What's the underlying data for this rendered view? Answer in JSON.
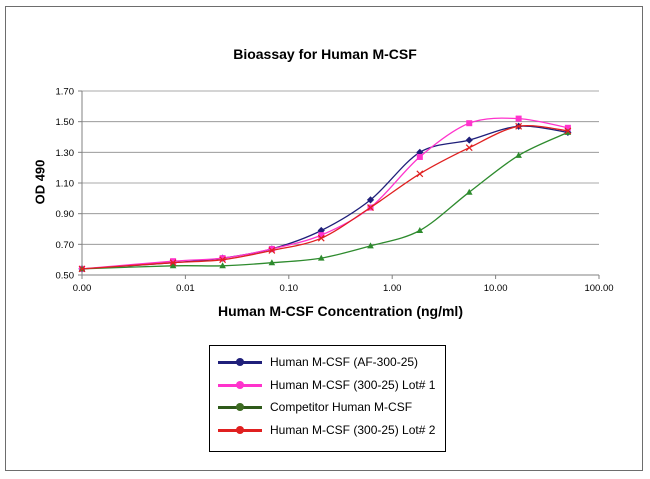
{
  "chart_data": {
    "type": "line",
    "title": "Bioassay for Human M-CSF",
    "xlabel": "Human M-CSF Concentration (ng/ml)",
    "ylabel": "OD 490",
    "x_scale": "log",
    "xlim": [
      0.001,
      100
    ],
    "ylim": [
      0.5,
      1.7
    ],
    "x_tick_labels": [
      "0.00",
      "0.01",
      "0.10",
      "1.00",
      "10.00",
      "100.00"
    ],
    "y_tick_labels": [
      "0.50",
      "0.70",
      "0.90",
      "1.10",
      "1.30",
      "1.50",
      "1.70"
    ],
    "grid": "horizontal",
    "legend_position": "bottom",
    "series": [
      {
        "name": "Human M-CSF (AF-300-25)",
        "color": "#1f1f7a",
        "marker": "diamond",
        "points": [
          [
            0.001,
            0.54
          ],
          [
            0.0076,
            0.58
          ],
          [
            0.0229,
            0.61
          ],
          [
            0.0686,
            0.67
          ],
          [
            0.206,
            0.79
          ],
          [
            0.617,
            0.99
          ],
          [
            1.85,
            1.3
          ],
          [
            5.56,
            1.38
          ],
          [
            16.7,
            1.47
          ],
          [
            50,
            1.43
          ]
        ]
      },
      {
        "name": "Human M-CSF (300-25) Lot# 1",
        "color": "#ff33cc",
        "marker": "square",
        "points": [
          [
            0.001,
            0.54
          ],
          [
            0.0076,
            0.59
          ],
          [
            0.0229,
            0.61
          ],
          [
            0.0686,
            0.67
          ],
          [
            0.206,
            0.76
          ],
          [
            0.617,
            0.94
          ],
          [
            1.85,
            1.27
          ],
          [
            5.56,
            1.49
          ],
          [
            16.7,
            1.52
          ],
          [
            50,
            1.46
          ]
        ]
      },
      {
        "name": "Competitor Human M-CSF",
        "color": "#2e8b2e",
        "marker": "triangle",
        "points": [
          [
            0.001,
            0.54
          ],
          [
            0.0076,
            0.56
          ],
          [
            0.0229,
            0.56
          ],
          [
            0.0686,
            0.58
          ],
          [
            0.206,
            0.61
          ],
          [
            0.617,
            0.69
          ],
          [
            1.85,
            0.79
          ],
          [
            5.56,
            1.04
          ],
          [
            16.7,
            1.28
          ],
          [
            50,
            1.43
          ]
        ]
      },
      {
        "name": "Human M-CSF (300-25) Lot# 2",
        "color": "#e02020",
        "marker": "x",
        "points": [
          [
            0.001,
            0.54
          ],
          [
            0.0076,
            0.58
          ],
          [
            0.0229,
            0.6
          ],
          [
            0.0686,
            0.66
          ],
          [
            0.206,
            0.74
          ],
          [
            0.617,
            0.94
          ],
          [
            1.85,
            1.16
          ],
          [
            5.56,
            1.33
          ],
          [
            16.7,
            1.47
          ],
          [
            50,
            1.44
          ]
        ]
      }
    ]
  },
  "legend": {
    "entries": [
      {
        "label": "Human M-CSF (AF-300-25)",
        "line_color": "#1f1f7a",
        "marker_color": "#1f1f7a"
      },
      {
        "label": "Human M-CSF (300-25) Lot# 1",
        "line_color": "#ff33cc",
        "marker_color": "#ff33cc"
      },
      {
        "label": "Competitor Human M-CSF",
        "line_color": "#2e5a1a",
        "marker_color": "#3d6b22"
      },
      {
        "label": "Human M-CSF (300-25) Lot# 2",
        "line_color": "#e02020",
        "marker_color": "#e02020"
      }
    ]
  }
}
